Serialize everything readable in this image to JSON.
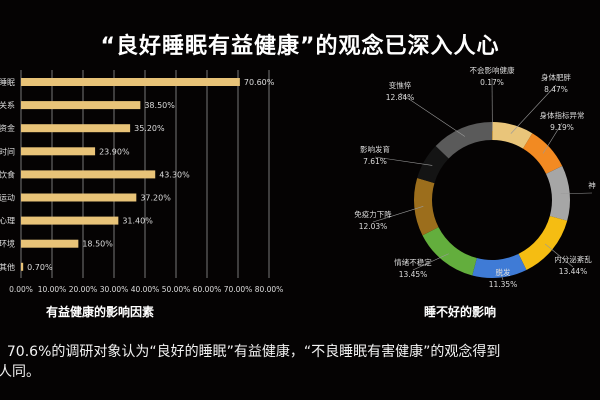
{
  "title": "“良好睡眠有益健康”的观念已深入人心",
  "caption": {
    "line1": "  70.6%的调研对象认为“良好的睡眠”有益健康，“不良睡眠有害健康”的观念得到",
    "line2": "人同。"
  },
  "colors": {
    "bar": "#e8c378",
    "background": "#050303",
    "grid": "#777777"
  },
  "chart_data": [
    {
      "type": "bar",
      "orientation": "horizontal",
      "title": "有益健康的影响因素",
      "categories": [
        "睡眠",
        "关系",
        "资金",
        "时间",
        "饮食",
        "运动",
        "心理",
        "环境",
        "其他"
      ],
      "values": [
        70.6,
        38.5,
        35.2,
        23.9,
        43.3,
        37.2,
        31.4,
        18.5,
        0.7
      ],
      "data_labels": [
        "70.60%",
        "38.50%",
        "35.20%",
        "23.90%",
        "43.30%",
        "37.20%",
        "31.40%",
        "18.50%",
        "0.70%"
      ],
      "xticks": [
        "0.00%",
        "10.00%",
        "20.00%",
        "30.00%",
        "40.00%",
        "50.00%",
        "60.00%",
        "70.00%",
        "80.00%"
      ],
      "xlim": [
        0,
        80
      ],
      "grid": "vertical"
    },
    {
      "type": "pie",
      "style": "donut",
      "title": "睡不好的影响",
      "slices": [
        {
          "label": "不会影响健康",
          "value": 0.17,
          "text": "0.17%",
          "color": "#d9a441"
        },
        {
          "label": "身体肥胖",
          "value": 8.47,
          "text": "8.47%",
          "color": "#e9c57a"
        },
        {
          "label": "身体指标异常",
          "value": 9.19,
          "text": "9.19%",
          "color": "#f28a22"
        },
        {
          "label": "神",
          "value": 11.45,
          "text": "",
          "color": "#a6a6a6"
        },
        {
          "label": "内分泌紊乱",
          "value": 13.44,
          "text": "13.44%",
          "color": "#f5bd12"
        },
        {
          "label": "脱发",
          "value": 11.35,
          "text": "11.35%",
          "color": "#3f7bd6"
        },
        {
          "label": "情绪不稳定",
          "value": 13.45,
          "text": "13.45%",
          "color": "#63ae3d"
        },
        {
          "label": "免疫力下降",
          "value": 12.03,
          "text": "12.03%",
          "color": "#9c6e1c"
        },
        {
          "label": "影响发育",
          "value": 7.61,
          "text": "7.61%",
          "color": "#141414"
        },
        {
          "label": "变憔悴",
          "value": 12.84,
          "text": "12.84%",
          "color": "#5a5a5a"
        }
      ]
    }
  ]
}
